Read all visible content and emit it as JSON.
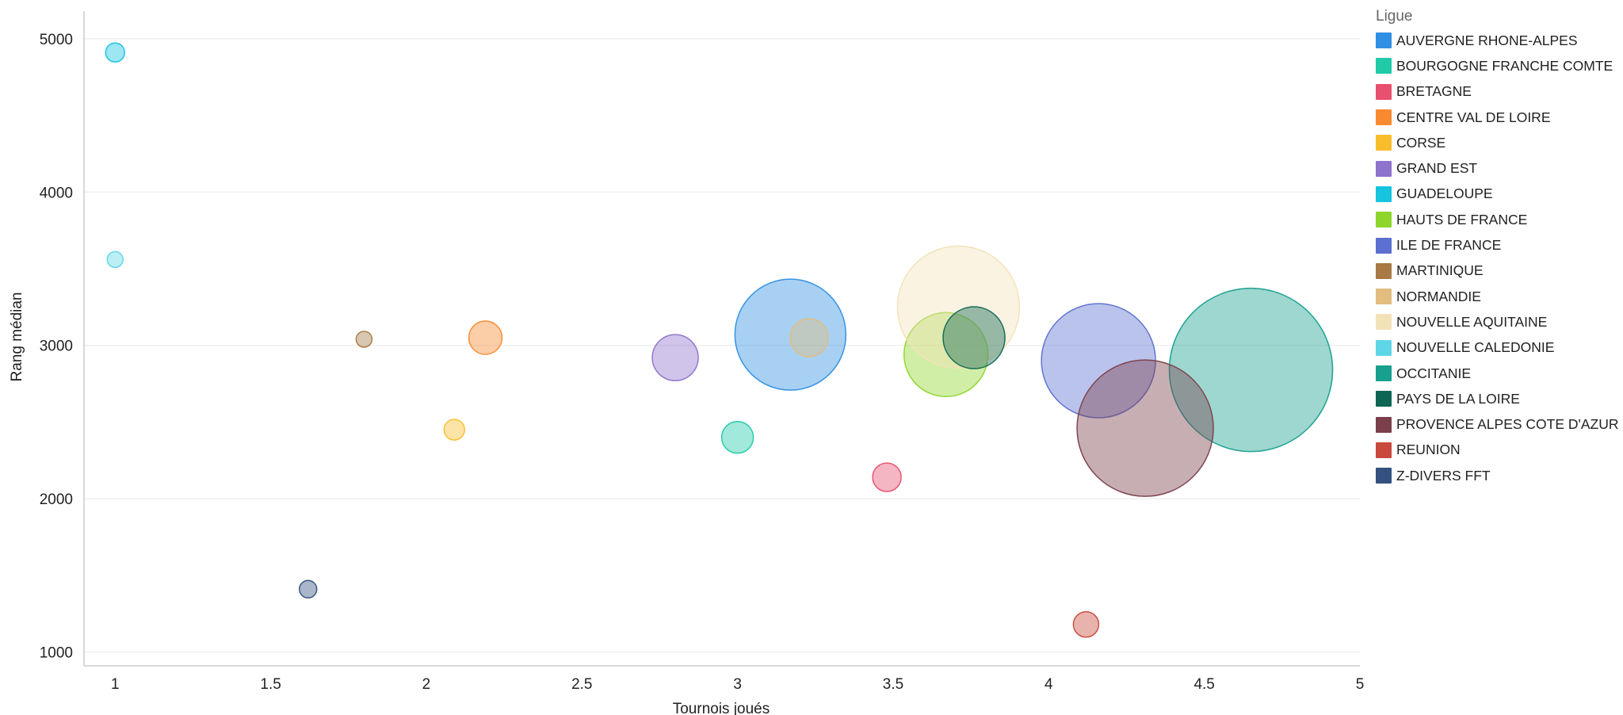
{
  "chart_data": {
    "type": "scatter",
    "xlabel": "Tournois joués",
    "ylabel": "Rang médian",
    "xlim": [
      0.9,
      5
    ],
    "ylim": [
      910,
      5180
    ],
    "xticks": [
      1,
      1.5,
      2,
      2.5,
      3,
      3.5,
      4,
      4.5,
      5
    ],
    "xtick_labels": [
      "1",
      "1.5",
      "2",
      "2.5",
      "3",
      "3.5",
      "4",
      "4.5",
      "5"
    ],
    "yticks": [
      1000,
      2000,
      3000,
      4000,
      5000
    ],
    "ytick_labels": [
      "1000",
      "2000",
      "3000",
      "4000",
      "5000"
    ],
    "grid": "horizontal",
    "legend": {
      "title": "Ligue",
      "position": "right",
      "entries": [
        {
          "name": "AUVERGNE RHONE-ALPES",
          "color": "#2f8fe3"
        },
        {
          "name": "BOURGOGNE FRANCHE COMTE",
          "color": "#1fcaa7"
        },
        {
          "name": "BRETAGNE",
          "color": "#e8506f"
        },
        {
          "name": "CENTRE VAL DE LOIRE",
          "color": "#f98a2f"
        },
        {
          "name": "CORSE",
          "color": "#f9bd2c"
        },
        {
          "name": "GRAND EST",
          "color": "#8e73cc"
        },
        {
          "name": "GUADELOUPE",
          "color": "#16c4df"
        },
        {
          "name": "HAUTS DE FRANCE",
          "color": "#8ed62c"
        },
        {
          "name": "ILE DE FRANCE",
          "color": "#5b70d0"
        },
        {
          "name": "MARTINIQUE",
          "color": "#a77a44"
        },
        {
          "name": "NORMANDIE",
          "color": "#e2bd7f"
        },
        {
          "name": "NOUVELLE AQUITAINE",
          "color": "#f3e2b8"
        },
        {
          "name": "NOUVELLE CALEDONIE",
          "color": "#5fd6e6"
        },
        {
          "name": "OCCITANIE",
          "color": "#18a08e"
        },
        {
          "name": "PAYS DE LA LOIRE",
          "color": "#0e6654"
        },
        {
          "name": "PROVENCE ALPES COTE D'AZUR",
          "color": "#7a3f4a"
        },
        {
          "name": "REUNION",
          "color": "#c94a3c"
        },
        {
          "name": "Z-DIVERS FFT",
          "color": "#34517f"
        }
      ]
    },
    "series": [
      {
        "name": "AUVERGNE RHONE-ALPES",
        "x": 3.17,
        "y": 3070,
        "size": 70
      },
      {
        "name": "BOURGOGNE FRANCHE COMTE",
        "x": 3.0,
        "y": 2400,
        "size": 20
      },
      {
        "name": "BRETAGNE",
        "x": 3.48,
        "y": 2140,
        "size": 18
      },
      {
        "name": "CENTRE VAL DE LOIRE",
        "x": 2.19,
        "y": 3050,
        "size": 21
      },
      {
        "name": "CORSE",
        "x": 2.09,
        "y": 2450,
        "size": 13
      },
      {
        "name": "GRAND EST",
        "x": 2.8,
        "y": 2920,
        "size": 29
      },
      {
        "name": "GUADELOUPE",
        "x": 1.0,
        "y": 4910,
        "size": 12
      },
      {
        "name": "HAUTS DE FRANCE",
        "x": 3.67,
        "y": 2940,
        "size": 53
      },
      {
        "name": "ILE DE FRANCE",
        "x": 4.16,
        "y": 2900,
        "size": 72
      },
      {
        "name": "MARTINIQUE",
        "x": 1.8,
        "y": 3040,
        "size": 10
      },
      {
        "name": "NORMANDIE",
        "x": 3.23,
        "y": 3050,
        "size": 24
      },
      {
        "name": "NOUVELLE AQUITAINE",
        "x": 3.71,
        "y": 3250,
        "size": 77
      },
      {
        "name": "NOUVELLE CALEDONIE",
        "x": 1.0,
        "y": 3560,
        "size": 10
      },
      {
        "name": "OCCITANIE",
        "x": 4.65,
        "y": 2840,
        "size": 103
      },
      {
        "name": "PAYS DE LA LOIRE",
        "x": 3.76,
        "y": 3050,
        "size": 39
      },
      {
        "name": "PROVENCE ALPES COTE D'AZUR",
        "x": 4.31,
        "y": 2460,
        "size": 86
      },
      {
        "name": "REUNION",
        "x": 4.12,
        "y": 1180,
        "size": 16
      },
      {
        "name": "Z-DIVERS FFT",
        "x": 1.62,
        "y": 1410,
        "size": 11
      }
    ]
  }
}
